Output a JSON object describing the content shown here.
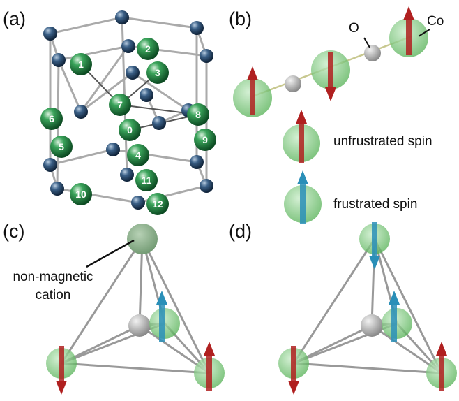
{
  "panels": [
    "(a)",
    "(b)",
    "(c)",
    "(d)"
  ],
  "atoms": [
    "0",
    "1",
    "2",
    "3",
    "4",
    "5",
    "6",
    "7",
    "8",
    "9",
    "10",
    "11",
    "12"
  ],
  "panel_b": {
    "oxygen": "O",
    "cobalt": "Co",
    "legend": [
      "unfrustrated spin",
      "frustrated spin"
    ]
  },
  "panel_c": {
    "annotation": [
      "non-magnetic",
      "cation"
    ]
  }
}
